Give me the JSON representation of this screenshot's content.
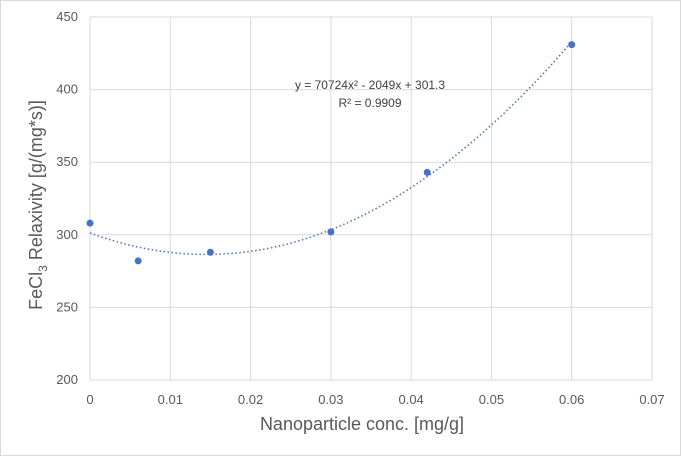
{
  "chart_data": {
    "type": "scatter",
    "title": "",
    "xlabel": "Nanoparticle conc. [mg/g]",
    "ylabel_prefix": "FeCl",
    "ylabel_sub": "3",
    "ylabel_suffix": " Relaxivity [g/(mg*s)]",
    "xlim": [
      0,
      0.07
    ],
    "ylim": [
      200,
      450
    ],
    "x_ticks": [
      0,
      0.01,
      0.02,
      0.03,
      0.04,
      0.05,
      0.06,
      0.07
    ],
    "x_tick_labels": [
      "0",
      "0.01",
      "0.02",
      "0.03",
      "0.04",
      "0.05",
      "0.06",
      "0.07"
    ],
    "y_ticks": [
      200,
      250,
      300,
      350,
      400,
      450
    ],
    "y_tick_labels": [
      "200",
      "250",
      "300",
      "350",
      "400",
      "450"
    ],
    "grid": true,
    "series": [
      {
        "x": [
          0,
          0.006,
          0.015,
          0.03,
          0.042,
          0.06
        ],
        "y": [
          308,
          282,
          288,
          302,
          343,
          431
        ],
        "color": "#4472c4"
      }
    ],
    "trendline": {
      "type": "polynomial",
      "coefficients": {
        "a": 70724,
        "b": -2049,
        "c": 301.3
      },
      "color": "#4472c4",
      "style": "dotted",
      "equation": "y = 70724x² - 2049x + 301.3",
      "r_squared": "R² = 0.9909"
    }
  }
}
